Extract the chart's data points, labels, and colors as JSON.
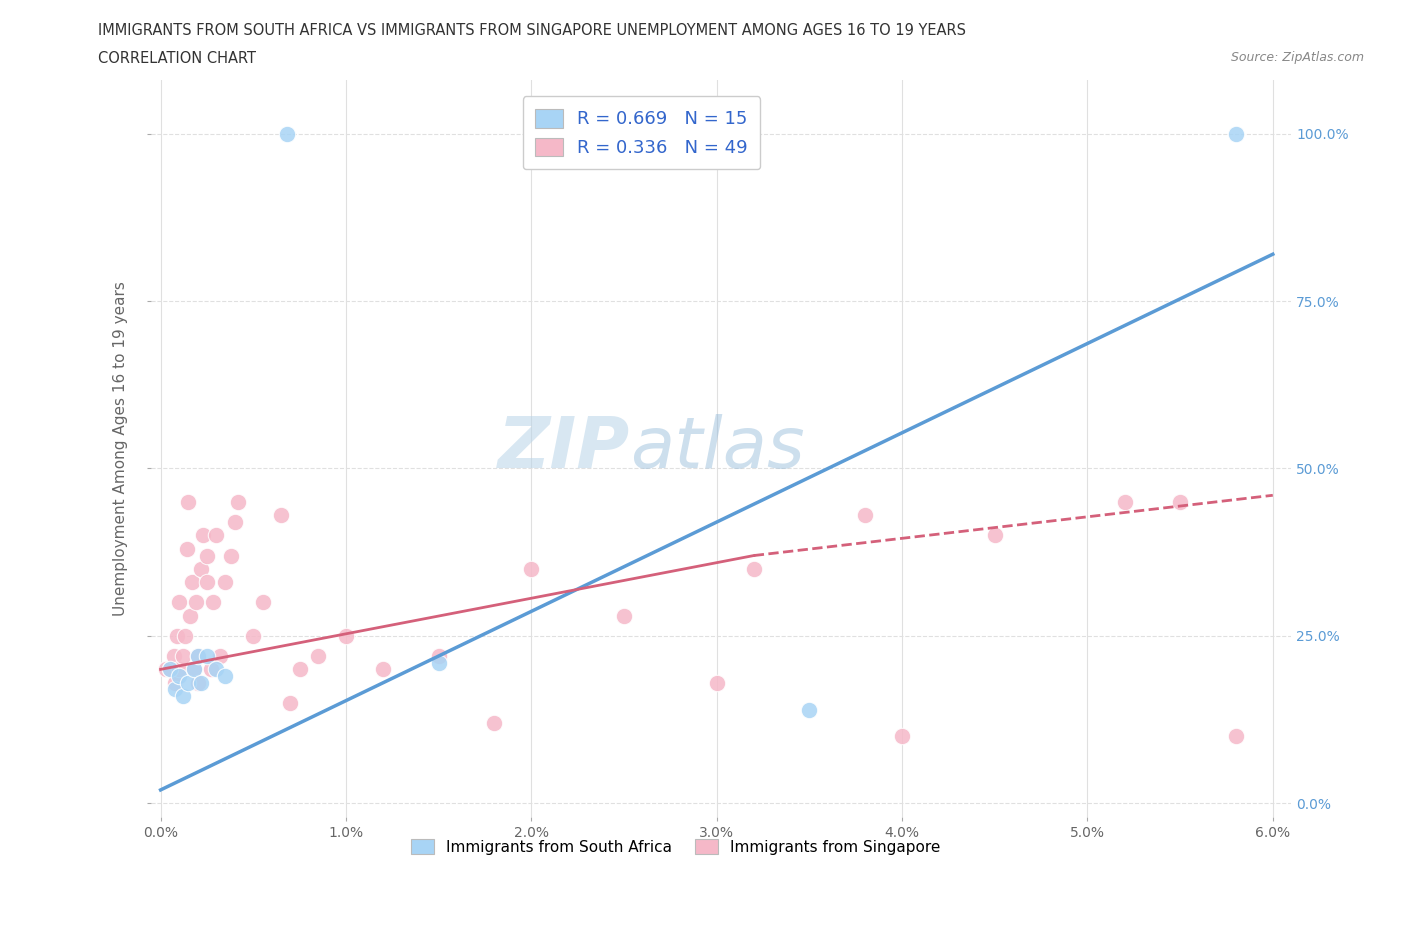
{
  "title_line1": "IMMIGRANTS FROM SOUTH AFRICA VS IMMIGRANTS FROM SINGAPORE UNEMPLOYMENT AMONG AGES 16 TO 19 YEARS",
  "title_line2": "CORRELATION CHART",
  "source": "Source: ZipAtlas.com",
  "xlabel_vals": [
    0.0,
    1.0,
    2.0,
    3.0,
    4.0,
    5.0,
    6.0
  ],
  "ylabel": "Unemployment Among Ages 16 to 19 years",
  "ylabel_vals": [
    0.0,
    25.0,
    50.0,
    75.0,
    100.0
  ],
  "xlim": [
    -0.05,
    6.1
  ],
  "ylim": [
    -2.0,
    108.0
  ],
  "south_africa_color": "#a8d4f5",
  "singapore_color": "#f5b8c8",
  "south_africa_line_color": "#5b9bd5",
  "singapore_line_color": "#d4607a",
  "south_africa_R": 0.669,
  "south_africa_N": 15,
  "singapore_R": 0.336,
  "singapore_N": 49,
  "legend_label_sa": "Immigrants from South Africa",
  "legend_label_sg": "Immigrants from Singapore",
  "watermark_zip": "ZIP",
  "watermark_atlas": "atlas",
  "sa_x": [
    0.05,
    0.08,
    0.1,
    0.12,
    0.15,
    0.18,
    0.2,
    0.22,
    0.25,
    0.3,
    0.35,
    0.68,
    1.5,
    3.5,
    5.8
  ],
  "sa_y": [
    20.0,
    17.0,
    19.0,
    16.0,
    18.0,
    20.0,
    22.0,
    18.0,
    22.0,
    20.0,
    19.0,
    100.0,
    21.0,
    14.0,
    100.0
  ],
  "sg_x": [
    0.03,
    0.05,
    0.07,
    0.08,
    0.09,
    0.1,
    0.1,
    0.12,
    0.13,
    0.14,
    0.15,
    0.16,
    0.17,
    0.18,
    0.19,
    0.2,
    0.2,
    0.22,
    0.23,
    0.25,
    0.25,
    0.27,
    0.28,
    0.3,
    0.32,
    0.35,
    0.38,
    0.4,
    0.42,
    0.5,
    0.55,
    0.65,
    0.7,
    0.75,
    0.85,
    1.0,
    1.2,
    1.5,
    1.8,
    2.0,
    2.5,
    3.0,
    3.2,
    3.8,
    4.0,
    4.5,
    5.2,
    5.5,
    5.8
  ],
  "sg_y": [
    20.0,
    20.0,
    22.0,
    18.0,
    25.0,
    20.0,
    30.0,
    22.0,
    25.0,
    38.0,
    45.0,
    28.0,
    33.0,
    20.0,
    30.0,
    18.0,
    22.0,
    35.0,
    40.0,
    33.0,
    37.0,
    20.0,
    30.0,
    40.0,
    22.0,
    33.0,
    37.0,
    42.0,
    45.0,
    25.0,
    30.0,
    43.0,
    15.0,
    20.0,
    22.0,
    25.0,
    20.0,
    22.0,
    12.0,
    35.0,
    28.0,
    18.0,
    35.0,
    43.0,
    10.0,
    40.0,
    45.0,
    45.0,
    10.0
  ],
  "background_color": "#ffffff",
  "grid_color": "#e0e0e0"
}
